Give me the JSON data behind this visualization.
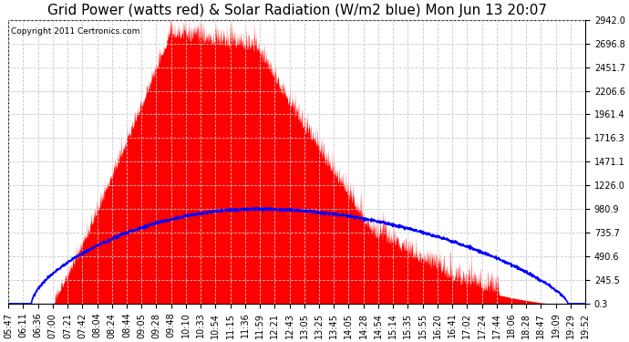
{
  "title": "Grid Power (watts red) & Solar Radiation (W/m2 blue) Mon Jun 13 20:07",
  "copyright": "Copyright 2011 Certronics.com",
  "yticks": [
    0.3,
    245.5,
    490.6,
    735.7,
    980.9,
    1226.0,
    1471.1,
    1716.3,
    1961.4,
    2206.6,
    2451.7,
    2696.8,
    2942.0
  ],
  "ymin": 0.3,
  "ymax": 2942.0,
  "xtick_labels": [
    "05:47",
    "06:11",
    "06:36",
    "07:00",
    "07:21",
    "07:42",
    "08:04",
    "08:24",
    "08:44",
    "09:05",
    "09:28",
    "09:48",
    "10:10",
    "10:33",
    "10:54",
    "11:15",
    "11:36",
    "11:59",
    "12:21",
    "12:43",
    "13:05",
    "13:25",
    "13:45",
    "14:05",
    "14:28",
    "14:54",
    "15:14",
    "15:35",
    "15:55",
    "16:20",
    "16:41",
    "17:02",
    "17:24",
    "17:44",
    "18:06",
    "18:28",
    "18:47",
    "19:09",
    "19:29",
    "19:52"
  ],
  "bg_color": "#ffffff",
  "plot_bg_color": "#ffffff",
  "grid_color": "#c8c8c8",
  "red_fill_color": "#ff0000",
  "blue_line_color": "#0000ff",
  "title_fontsize": 11,
  "tick_fontsize": 7,
  "copyright_fontsize": 6.5
}
